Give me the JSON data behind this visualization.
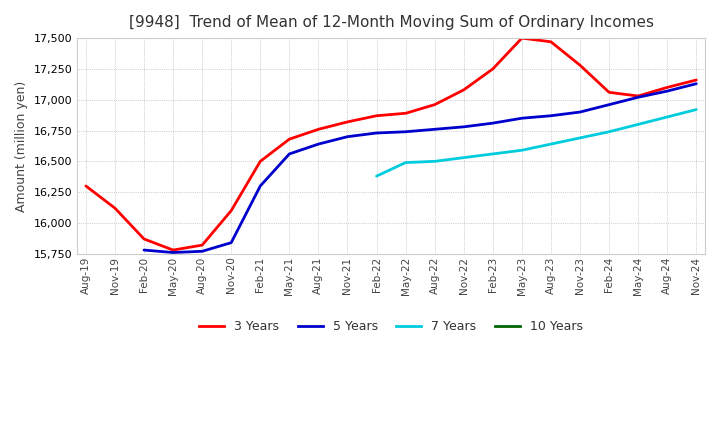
{
  "title": "[9948]  Trend of Mean of 12-Month Moving Sum of Ordinary Incomes",
  "ylabel": "Amount (million yen)",
  "ylim": [
    15750,
    17500
  ],
  "yticks": [
    15750,
    16000,
    16250,
    16500,
    16750,
    17000,
    17250,
    17500
  ],
  "line_colors": [
    "#ff0000",
    "#0000cd",
    "#00ccdd",
    "#006400"
  ],
  "legend": [
    "3 Years",
    "5 Years",
    "7 Years",
    "10 Years"
  ],
  "x_labels": [
    "Aug-19",
    "Nov-19",
    "Feb-20",
    "May-20",
    "Aug-20",
    "Nov-20",
    "Feb-21",
    "May-21",
    "Aug-21",
    "Nov-21",
    "Feb-22",
    "May-22",
    "Aug-22",
    "Nov-22",
    "Feb-23",
    "May-23",
    "Aug-23",
    "Nov-23",
    "Feb-24",
    "May-24",
    "Aug-24",
    "Nov-24"
  ],
  "series_3y": [
    16300,
    16120,
    15870,
    15780,
    15820,
    16100,
    16500,
    16680,
    16760,
    16820,
    16870,
    16890,
    16960,
    17080,
    17250,
    17500,
    17470,
    17280,
    17060,
    17030,
    17100,
    17160
  ],
  "series_5y": [
    null,
    null,
    15780,
    15760,
    15770,
    15840,
    16300,
    16560,
    16640,
    16700,
    16730,
    16740,
    16760,
    16780,
    16810,
    16850,
    16870,
    16900,
    16960,
    17020,
    17070,
    17130
  ],
  "series_7y": [
    null,
    null,
    null,
    null,
    null,
    null,
    null,
    null,
    null,
    null,
    16380,
    16490,
    16500,
    16530,
    16560,
    16590,
    16640,
    16690,
    16740,
    16800,
    16860,
    16920
  ],
  "series_10y": [
    null,
    null,
    null,
    null,
    null,
    null,
    null,
    null,
    null,
    null,
    null,
    null,
    null,
    null,
    null,
    null,
    null,
    null,
    null,
    null,
    null,
    null
  ]
}
